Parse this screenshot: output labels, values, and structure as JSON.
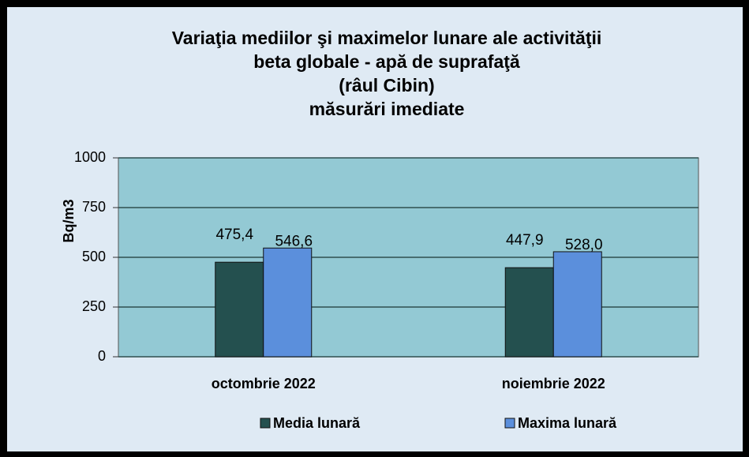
{
  "chart_data": {
    "type": "bar",
    "title": [
      "Variaţia mediilor şi maximelor lunare ale activităţii",
      "beta globale - apă de suprafaţă",
      "(râul Cibin)",
      "măsurări imediate"
    ],
    "y_label": "Bq/m3",
    "categories": [
      "octombrie 2022",
      "noiembrie 2022"
    ],
    "series": [
      {
        "name": "Media lunară",
        "color": "#24504f",
        "values": [
          475.4,
          447.9
        ],
        "value_labels": [
          "475,4",
          "447,9"
        ]
      },
      {
        "name": "Maxima lunară",
        "color": "#5b8fdc",
        "values": [
          546.6,
          528.0
        ],
        "value_labels": [
          "546,6",
          "528,0"
        ]
      }
    ],
    "ylim": [
      0,
      1000
    ],
    "yticks": [
      0,
      250,
      500,
      750,
      1000
    ],
    "grid": true,
    "legend": "bottom"
  }
}
